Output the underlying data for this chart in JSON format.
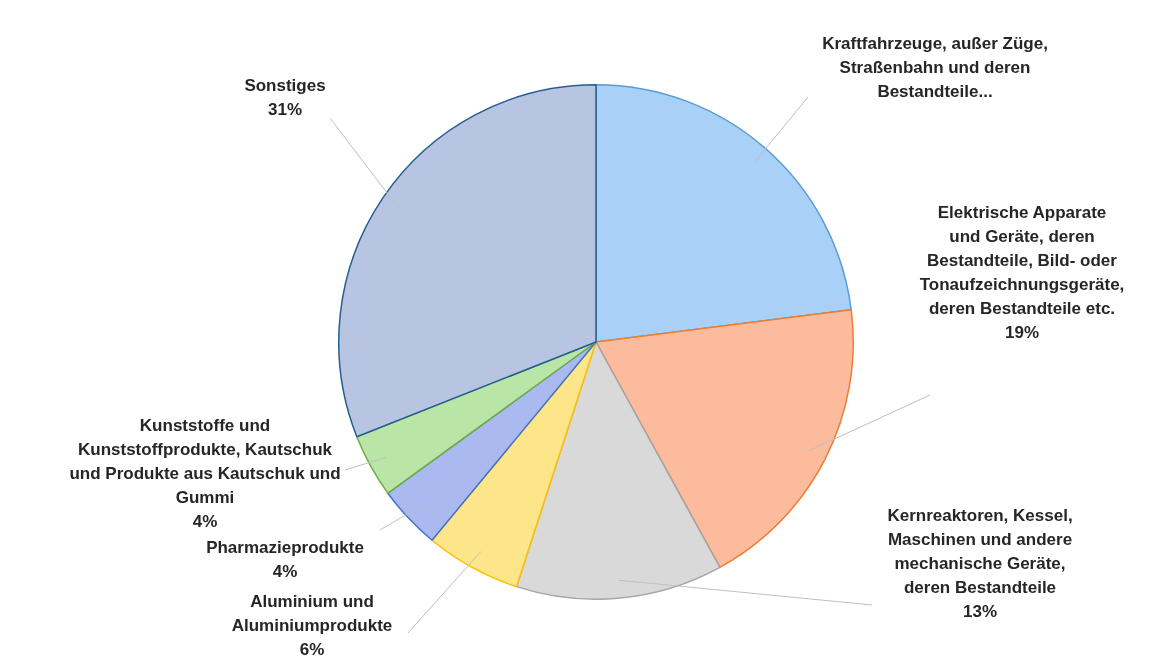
{
  "chart_data": {
    "type": "pie",
    "categories": [
      "Kraftfahrzeuge, außer Züge, Straßenbahn und deren Bestandteile...",
      "Elektrische Apparate und Geräte, deren Bestandteile, Bild- oder Tonaufzeichnungsgeräte, deren Bestandteile etc.",
      "Kernreaktoren, Kessel, Maschinen und andere mechanische Geräte, deren Bestandteile",
      "Aluminium und Aluminiumprodukte",
      "Pharmazieprodukte",
      "Kunststoffe und Kunststoffprodukte, Kautschuk und Produkte aus Kautschuk und Gummi",
      "Sonstiges"
    ],
    "values": [
      23,
      19,
      13,
      6,
      4,
      4,
      31
    ],
    "value_labels": [
      null,
      "19%",
      "13%",
      "6%",
      "4%",
      "4%",
      "31%"
    ],
    "colors": [
      "#a9d1f7",
      "#fbbb9c",
      "#d9d9d9",
      "#fde58a",
      "#aab9f0",
      "#b9e6a6",
      "#b8c5e2"
    ],
    "legend": false
  }
}
